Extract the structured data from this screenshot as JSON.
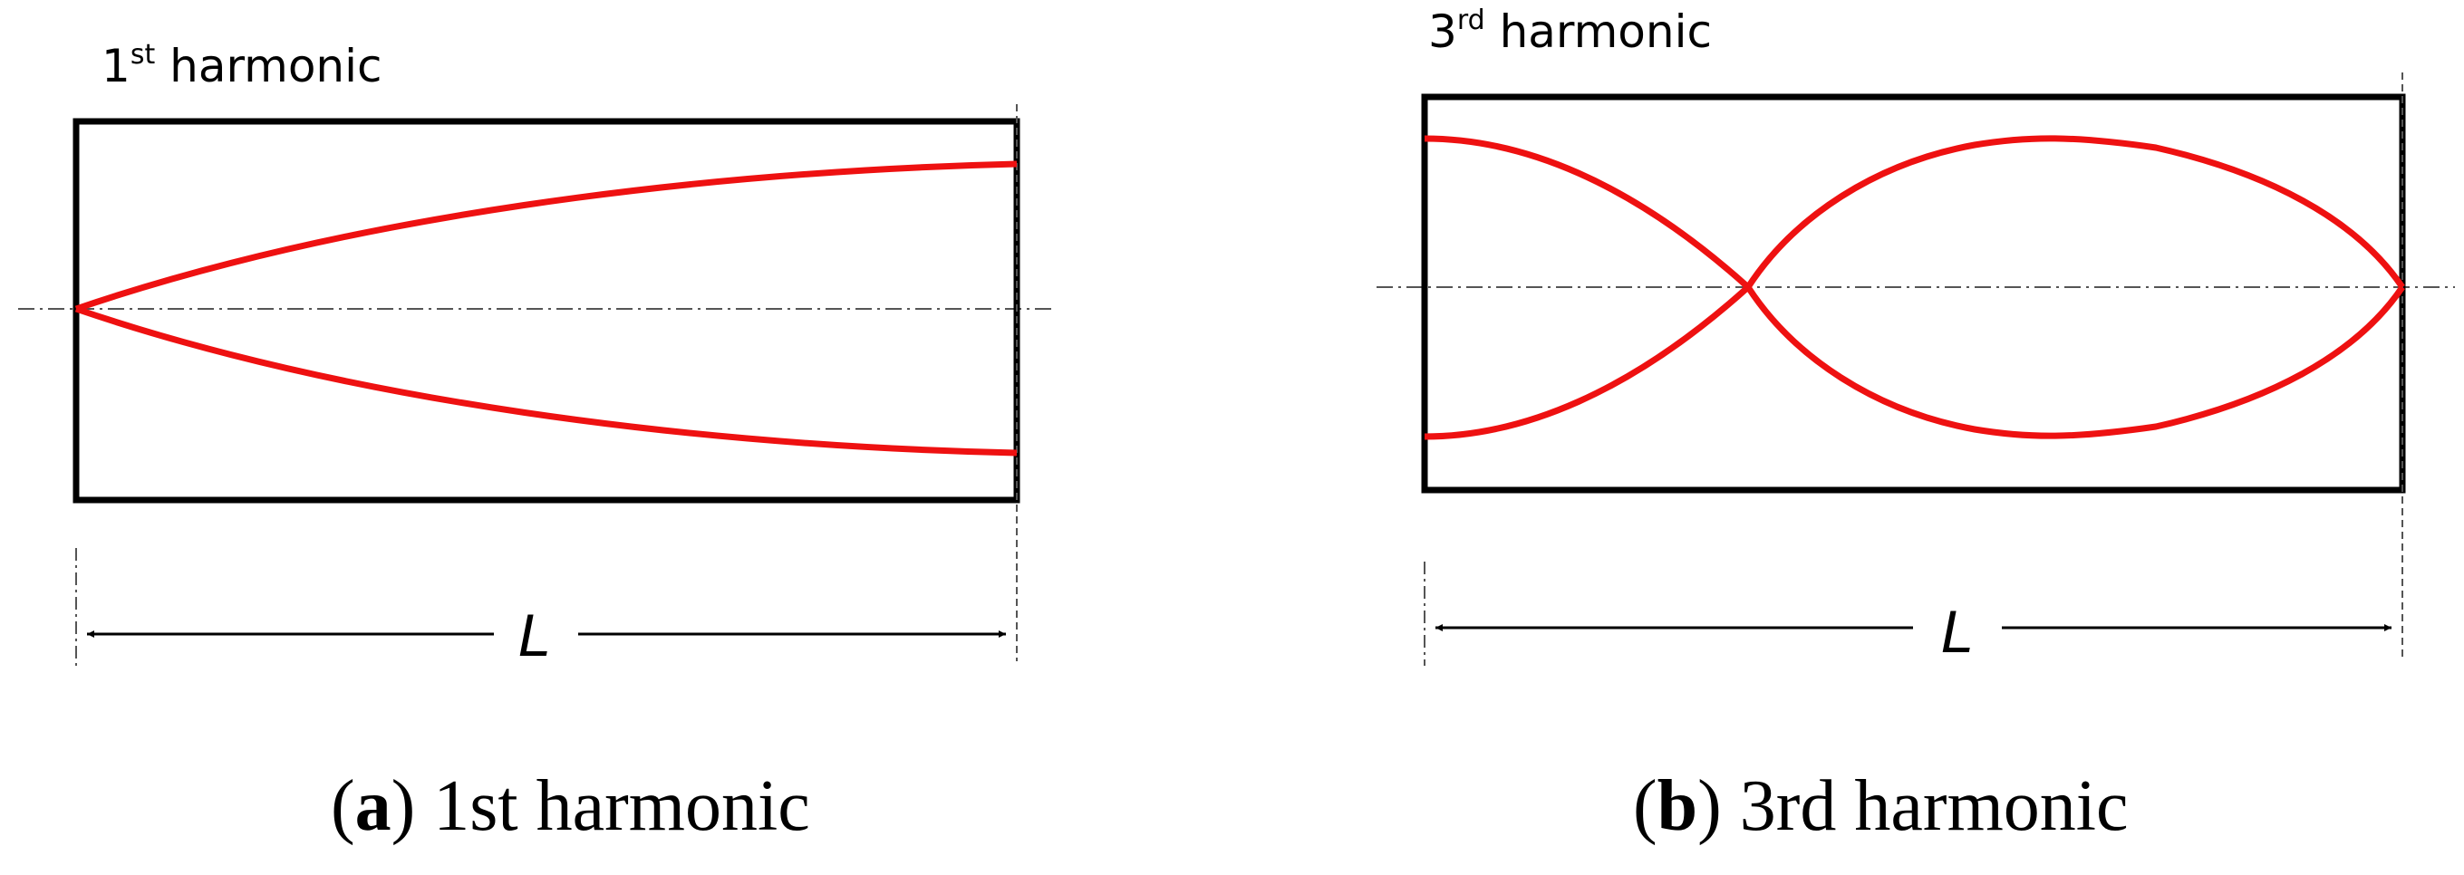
{
  "panels": [
    {
      "id": "a",
      "inner_label": {
        "number": "1",
        "suffix": "st",
        "word": "harmonic"
      },
      "length_label": "L",
      "caption": {
        "open": "(",
        "letter": "a",
        "close": ")",
        "text": " 1st harmonic"
      }
    },
    {
      "id": "b",
      "inner_label": {
        "number": "3",
        "suffix": "rd",
        "word": "harmonic"
      },
      "length_label": "L",
      "caption": {
        "open": "(",
        "letter": "b",
        "close": ")",
        "text": " 3rd harmonic"
      }
    }
  ],
  "colors": {
    "mode_shape": "#ee1111",
    "outline": "#000000",
    "centerline": "#555555"
  }
}
